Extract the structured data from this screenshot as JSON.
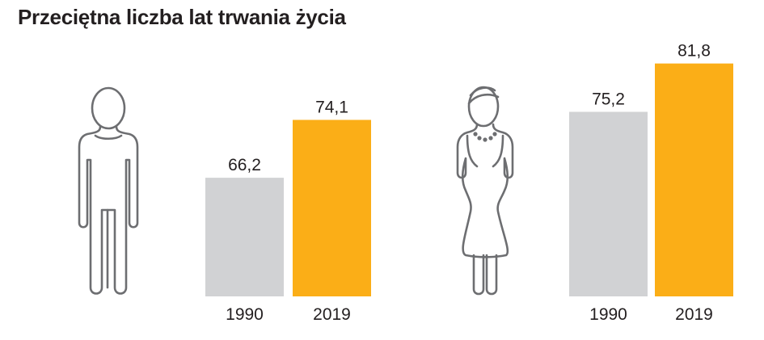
{
  "title": "Przeciętna liczba lat trwania życia",
  "colors": {
    "y1990": "#d1d2d4",
    "y2019": "#fbae17",
    "icon": "#6d6e71"
  },
  "icons": [
    "man-icon",
    "woman-icon"
  ],
  "chart_data": [
    {
      "type": "bar",
      "group": "men",
      "categories": [
        "1990",
        "2019"
      ],
      "values": [
        66.2,
        74.1
      ],
      "value_labels": [
        "66,2",
        "74,1"
      ],
      "ylim": [
        50,
        82.2
      ]
    },
    {
      "type": "bar",
      "group": "women",
      "categories": [
        "1990",
        "2019"
      ],
      "values": [
        75.2,
        81.8
      ],
      "value_labels": [
        "75,2",
        "81,8"
      ],
      "ylim": [
        50,
        82.2
      ]
    }
  ]
}
